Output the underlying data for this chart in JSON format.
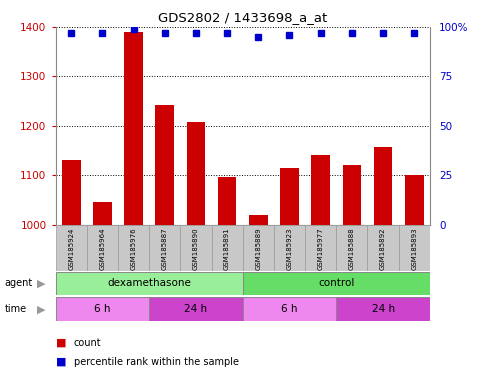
{
  "title": "GDS2802 / 1433698_a_at",
  "samples": [
    "GSM185924",
    "GSM185964",
    "GSM185976",
    "GSM185887",
    "GSM185890",
    "GSM185891",
    "GSM185889",
    "GSM185923",
    "GSM185977",
    "GSM185888",
    "GSM185892",
    "GSM185893"
  ],
  "counts": [
    1130,
    1045,
    1390,
    1242,
    1207,
    1097,
    1020,
    1115,
    1140,
    1120,
    1158,
    1100
  ],
  "percentile_ranks": [
    97,
    97,
    99,
    97,
    97,
    97,
    95,
    96,
    97,
    97,
    97,
    97
  ],
  "bar_color": "#cc0000",
  "dot_color": "#0000cc",
  "ylim_left": [
    1000,
    1400
  ],
  "ylim_right": [
    0,
    100
  ],
  "yticks_left": [
    1000,
    1100,
    1200,
    1300,
    1400
  ],
  "yticks_right": [
    0,
    25,
    50,
    75,
    100
  ],
  "agent_groups": [
    {
      "label": "dexamethasone",
      "start": 0,
      "end": 6,
      "color": "#aaeea a"
    },
    {
      "label": "control",
      "start": 6,
      "end": 12,
      "color": "#66dd66"
    }
  ],
  "time_groups": [
    {
      "label": "6 h",
      "start": 0,
      "end": 3,
      "color": "#ee88ee"
    },
    {
      "label": "24 h",
      "start": 3,
      "end": 6,
      "color": "#cc44cc"
    },
    {
      "label": "6 h",
      "start": 6,
      "end": 9,
      "color": "#ee88ee"
    },
    {
      "label": "24 h",
      "start": 9,
      "end": 12,
      "color": "#cc44cc"
    }
  ],
  "bar_color_hex": "#cc0000",
  "dot_color_hex": "#0000cc",
  "grid_color": "#000000",
  "axis_color_left": "#cc0000",
  "axis_color_right": "#0000cc",
  "xticklabel_bg": "#c8c8c8",
  "agent_color_dexa": "#99ee99",
  "agent_color_ctrl": "#66dd66",
  "time_color_6h": "#ee88ee",
  "time_color_24h": "#cc44cc"
}
